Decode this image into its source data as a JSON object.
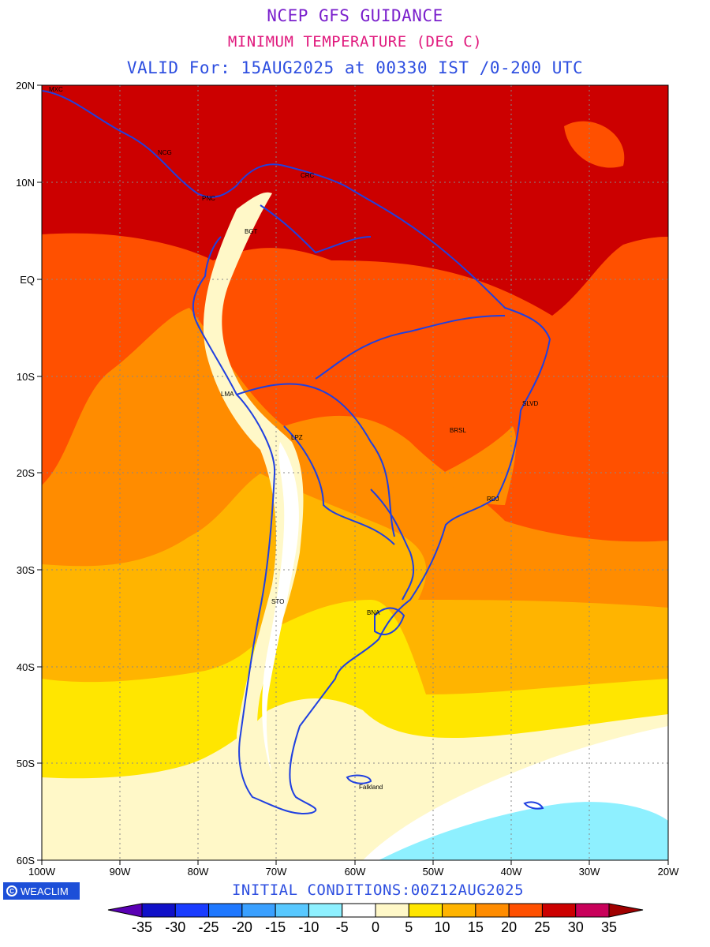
{
  "title": {
    "line1": "NCEP GFS GUIDANCE",
    "line2": "MINIMUM TEMPERATURE (DEG C)",
    "line3": "VALID For: 15AUG2025 at 00330 IST /0-200 UTC",
    "colors": {
      "line1": "#7a1fcc",
      "line2": "#e0197d",
      "line3": "#2e4fe0"
    }
  },
  "axes": {
    "lat_labels": [
      "20N",
      "10N",
      "EQ",
      "10S",
      "20S",
      "30S",
      "40S",
      "50S",
      "60S"
    ],
    "lon_labels": [
      "100W",
      "90W",
      "80W",
      "70W",
      "60W",
      "50W",
      "40W",
      "30W",
      "20W"
    ],
    "grid": "dotted"
  },
  "cities": [
    "MXC",
    "NCG",
    "PNC",
    "CRC",
    "BGT",
    "LMA",
    "LPZ",
    "SLVD",
    "BRSL",
    "RDJ",
    "STO",
    "BNA",
    "Falkland"
  ],
  "logo": {
    "text": "WEACLIM",
    "icon": "weaclim-logo-icon",
    "color": "#1d4fd8"
  },
  "initial_conditions": {
    "text": "INITIAL CONDITIONS:00Z12AUG2025",
    "color": "#2e4fe0"
  },
  "colorbar": {
    "ticks": [
      "-35",
      "-30",
      "-25",
      "-20",
      "-15",
      "-10",
      "-5",
      "0",
      "5",
      "10",
      "15",
      "20",
      "25",
      "30",
      "35"
    ],
    "colors": [
      "#1010c8",
      "#1a3cff",
      "#1f78ff",
      "#3aa0ff",
      "#58c8ff",
      "#8ef0ff",
      "#ffffff",
      "#fff8c8",
      "#ffe600",
      "#ffb400",
      "#ff8c00",
      "#ff5000",
      "#cc0000",
      "#c8005a"
    ],
    "under_color": "#5a00b4",
    "over_color": "#a00000"
  },
  "legend": {
    "colors": {
      "t_0_5": "#fff8c8",
      "t_5_10": "#ffe600",
      "t_10_15": "#ffb400",
      "t_15_20": "#ff8c00",
      "t_20_25": "#ff5000",
      "t_25_30": "#cc0000",
      "t_neg5_0": "#ffffff",
      "t_neg10_neg5": "#8ef0ff",
      "coast": "#2040e0"
    }
  }
}
